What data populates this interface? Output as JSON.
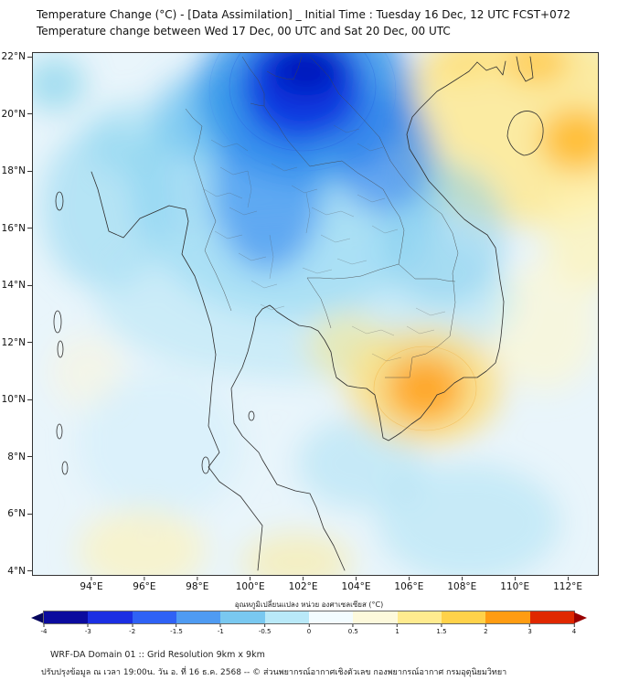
{
  "header": {
    "title_line1": "Temperature Change (°C) - [Data Assimilation] _ Initial Time : Tuesday 16 Dec, 12 UTC FCST+072",
    "title_line2": "Temperature change between Wed 17 Dec, 00 UTC and Sat 20 Dec, 00 UTC"
  },
  "map": {
    "lat_ticks": [
      "22°N",
      "20°N",
      "18°N",
      "16°N",
      "14°N",
      "12°N",
      "10°N",
      "8°N",
      "6°N",
      "4°N"
    ],
    "lon_ticks": [
      "94°E",
      "96°E",
      "98°E",
      "100°E",
      "102°E",
      "104°E",
      "106°E",
      "108°E",
      "110°E",
      "112°E"
    ]
  },
  "colorbar": {
    "label": "อุณหภูมิเปลี่ยนแปลง หน่วย องศาเซลเซียส (°C)",
    "ticks": [
      "-4",
      "-3",
      "-2",
      "-1.5",
      "-1",
      "-0.5",
      "0",
      "0.5",
      "1",
      "1.5",
      "2",
      "3",
      "4"
    ],
    "segment_colors": [
      "#0b0b9e",
      "#1b2fe3",
      "#2f62f5",
      "#4f9bf2",
      "#79c8f0",
      "#b9e9f8",
      "#f3fcff",
      "#fdf9dc",
      "#ffeb8f",
      "#ffd24a",
      "#ff9c12",
      "#e02800"
    ],
    "left_arrow_color": "#06065e",
    "right_arrow_color": "#990000"
  },
  "footer": {
    "line1": "WRF-DA Domain 01 :: Grid Resolution 9km x 9km",
    "line2": "ปรับปรุงข้อมูล ณ เวลา 19:00น. วัน อ. ที่ 16 ธ.ค. 2568 -- © ส่วนพยากรณ์อากาศเชิงตัวเลข กองพยากรณ์อากาศ กรมอุตุนิยมวิทยา"
  }
}
